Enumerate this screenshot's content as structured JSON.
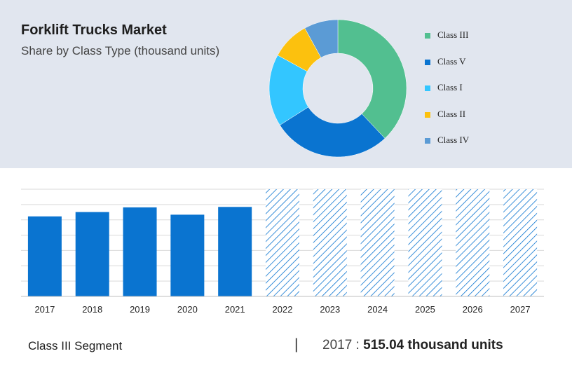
{
  "header": {
    "title": "Forklift Trucks Market",
    "subtitle": "Share by Class Type (thousand units)"
  },
  "colors": {
    "top_panel_bg": "#e1e6ef",
    "bar_actual": "#0a74d0",
    "bar_forecast_hatch": "#0a74d0",
    "grid": "#d9d9d9"
  },
  "footer": {
    "segment": "Class III Segment",
    "separator": "|",
    "year": "2017",
    "colon": " : ",
    "value": "515.04 thousand units"
  },
  "chart_data": [
    {
      "type": "pie",
      "subtype": "donut",
      "legend_position": "right",
      "slices": [
        {
          "label": "Class III",
          "value": 38,
          "color": "#52bf90"
        },
        {
          "label": "Class V",
          "value": 28,
          "color": "#0a74d0"
        },
        {
          "label": "Class I",
          "value": 17,
          "color": "#33c6ff"
        },
        {
          "label": "Class II",
          "value": 9,
          "color": "#fcc10e"
        },
        {
          "label": "Class IV",
          "value": 8,
          "color": "#5b9bd5"
        }
      ]
    },
    {
      "type": "bar",
      "categories": [
        "2017",
        "2018",
        "2019",
        "2020",
        "2021",
        "2022",
        "2023",
        "2024",
        "2025",
        "2026",
        "2027"
      ],
      "values": [
        515.04,
        543,
        573,
        526,
        576,
        null,
        null,
        null,
        null,
        null,
        null
      ],
      "forecast_from_index": 5,
      "ylim": [
        0,
        690
      ],
      "grid": true,
      "series_color": "#0a74d0"
    }
  ]
}
